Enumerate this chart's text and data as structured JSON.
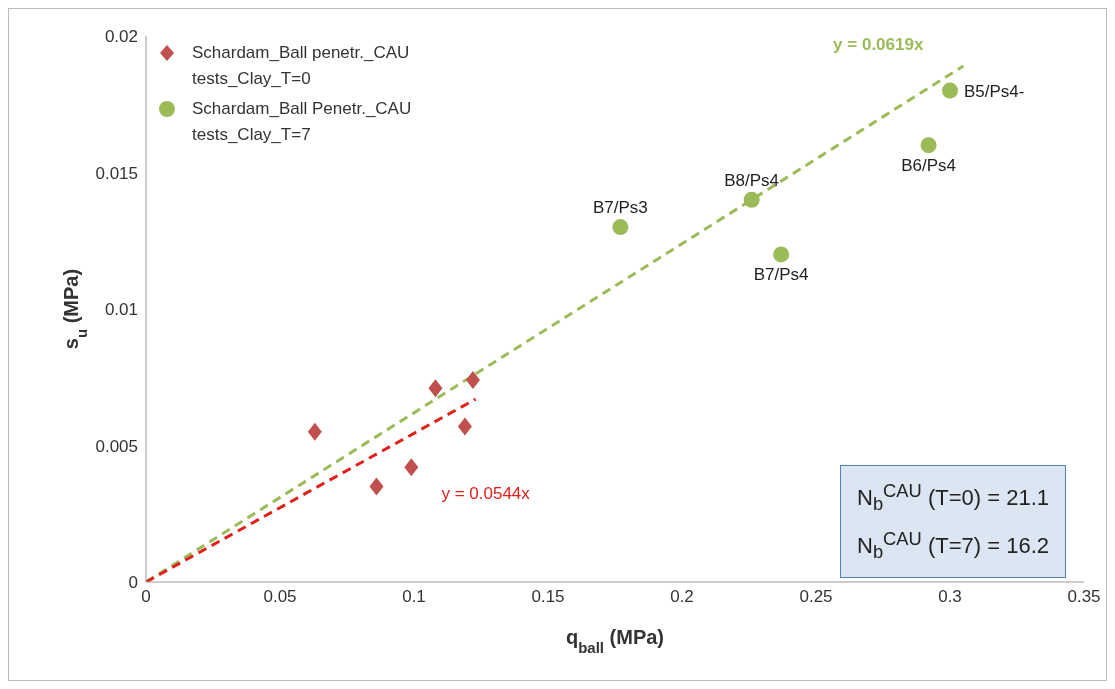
{
  "chart_data": {
    "type": "scatter",
    "xlabel": "q$_{ball}$ (MPa)",
    "ylabel": "s$_{u}$ (MPa)",
    "xlim": [
      0,
      0.35
    ],
    "xticks": [
      0,
      0.05,
      0.1,
      0.15,
      0.2,
      0.25,
      0.3,
      0.35
    ],
    "ylim": [
      0,
      0.02
    ],
    "yticks": [
      0,
      0.005,
      0.01,
      0.015,
      0.02
    ],
    "grid": false,
    "legend": "top left",
    "series": [
      {
        "type": "scatter",
        "name": "Schardam_Ball penetr._CAU tests_Clay_T=0",
        "color": "#c0504d",
        "marker": "diamond",
        "x": [
          0.063,
          0.086,
          0.099,
          0.108,
          0.119,
          0.122
        ],
        "values": [
          0.0055,
          0.0035,
          0.0042,
          0.0071,
          0.0057,
          0.0074
        ]
      },
      {
        "type": "scatter",
        "name": "Schardam_Ball Penetr._CAU tests_Clay_T=7",
        "color": "#9bbb59",
        "marker": "circle",
        "x": [
          0.177,
          0.226,
          0.237,
          0.292,
          0.3
        ],
        "values": [
          0.013,
          0.014,
          0.012,
          0.016,
          0.018
        ]
      },
      {
        "type": "line",
        "name": "y = 0.0619x",
        "color": "#9bbb59",
        "line_style": "dashed",
        "marker": "none",
        "x": [
          0,
          0.305
        ],
        "values": [
          0,
          0.0189
        ]
      },
      {
        "type": "line",
        "name": "y = 0.0544x",
        "color": "#e0201b",
        "line_style": "dashed",
        "marker": "none",
        "x": [
          0,
          0.123
        ],
        "values": [
          0,
          0.0067
        ]
      }
    ],
    "annotations": [
      {
        "text": "B7/Ps3",
        "x": 0.177,
        "y": 0.013
      },
      {
        "text": "B8/Ps4",
        "x": 0.226,
        "y": 0.014
      },
      {
        "text": "B7/Ps4",
        "x": 0.237,
        "y": 0.012
      },
      {
        "text": "B6/Ps4",
        "x": 0.292,
        "y": 0.016
      },
      {
        "text": "B5/Ps4-",
        "x": 0.3,
        "y": 0.018
      },
      "N$_{b}$$^{CAU}$ (T=0) = 21.1",
      "N$_{b}$$^{CAU}$ (T=7) = 16.2"
    ]
  }
}
